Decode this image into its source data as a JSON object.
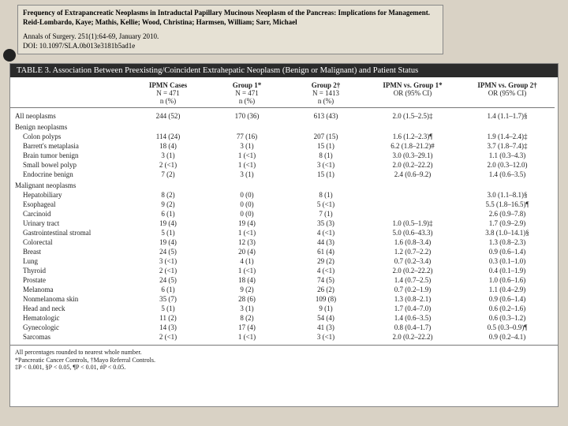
{
  "citation": {
    "title": "Frequency of Extrapancreatic Neoplasms in Intraductal Papillary Mucinous Neoplasm of the Pancreas: Implications for Management.",
    "authors": "Reid-Lombardo, Kaye; Mathis, Kellie; Wood, Christina; Harmsen, William; Sarr, Michael",
    "journal": "Annals of Surgery. 251(1):64-69, January 2010.",
    "doi": "DOI: 10.1097/SLA.0b013e3181b5ad1e"
  },
  "table": {
    "title": "TABLE 3.  Association Between Preexisting/Coincident Extrahepatic Neoplasm (Benign or Malignant) and Patient Status",
    "columns": [
      {
        "top": "",
        "mid": "",
        "bot": ""
      },
      {
        "top": "IPMN Cases",
        "mid": "N = 471",
        "bot": "n (%)"
      },
      {
        "top": "Group 1*",
        "mid": "N = 471",
        "bot": "n (%)"
      },
      {
        "top": "Group 2†",
        "mid": "N = 1413",
        "bot": "n (%)"
      },
      {
        "top": "IPMN vs. Group 1*",
        "mid": "OR (95% CI)",
        "bot": ""
      },
      {
        "top": "IPMN vs. Group 2†",
        "mid": "OR (95% CI)",
        "bot": ""
      }
    ],
    "sections": [
      {
        "label": "All neoplasms",
        "indent": false,
        "cells": [
          "244 (52)",
          "170 (36)",
          "613 (43)",
          "2.0 (1.5–2.5)‡",
          "1.4 (1.1–1.7)§"
        ]
      },
      {
        "label": "Benign neoplasms",
        "indent": false,
        "cells": [
          "",
          "",
          "",
          "",
          ""
        ],
        "head": true
      },
      {
        "label": "Colon polyps",
        "indent": true,
        "cells": [
          "114 (24)",
          "77 (16)",
          "207 (15)",
          "1.6 (1.2–2.3)¶",
          "1.9 (1.4–2.4)‡"
        ]
      },
      {
        "label": "Barrett's metaplasia",
        "indent": true,
        "cells": [
          "18 (4)",
          "3 (1)",
          "15 (1)",
          "6.2 (1.8–21.2)#",
          "3.7 (1.8–7.4)‡"
        ]
      },
      {
        "label": "Brain tumor benign",
        "indent": true,
        "cells": [
          "3 (1)",
          "1 (<1)",
          "8 (1)",
          "3.0 (0.3–29.1)",
          "1.1 (0.3–4.3)"
        ]
      },
      {
        "label": "Small bowel polyp",
        "indent": true,
        "cells": [
          "2 (<1)",
          "1 (<1)",
          "3 (<1)",
          "2.0 (0.2–22.2)",
          "2.0 (0.3–12.0)"
        ]
      },
      {
        "label": "Endocrine benign",
        "indent": true,
        "cells": [
          "7 (2)",
          "3 (1)",
          "15 (1)",
          "2.4 (0.6–9.2)",
          "1.4 (0.6–3.5)"
        ]
      },
      {
        "label": "Malignant neoplasms",
        "indent": false,
        "cells": [
          "",
          "",
          "",
          "",
          ""
        ],
        "head": true
      },
      {
        "label": "Hepatobiliary",
        "indent": true,
        "cells": [
          "8 (2)",
          "0 (0)",
          "8 (1)",
          "",
          "3.0 (1.1–8.1)§"
        ]
      },
      {
        "label": "Esophageal",
        "indent": true,
        "cells": [
          "9 (2)",
          "0 (0)",
          "5 (<1)",
          "",
          "5.5 (1.8–16.5)¶"
        ]
      },
      {
        "label": "Carcinoid",
        "indent": true,
        "cells": [
          "6 (1)",
          "0 (0)",
          "7 (1)",
          "",
          "2.6 (0.9–7.8)"
        ]
      },
      {
        "label": "Urinary tract",
        "indent": true,
        "cells": [
          "19 (4)",
          "19 (4)",
          "35 (3)",
          "1.0 (0.5–1.9)‡",
          "1.7 (0.9–2.9)"
        ]
      },
      {
        "label": "Gastrointestinal stromal",
        "indent": true,
        "cells": [
          "5 (1)",
          "1 (<1)",
          "4 (<1)",
          "5.0 (0.6–43.3)",
          "3.8 (1.0–14.1)§"
        ]
      },
      {
        "label": "Colorectal",
        "indent": true,
        "cells": [
          "19 (4)",
          "12 (3)",
          "44 (3)",
          "1.6 (0.8–3.4)",
          "1.3 (0.8–2.3)"
        ]
      },
      {
        "label": "Breast",
        "indent": true,
        "cells": [
          "24 (5)",
          "20 (4)",
          "61 (4)",
          "1.2 (0.7–2.2)",
          "0.9 (0.6–1.4)"
        ]
      },
      {
        "label": "Lung",
        "indent": true,
        "cells": [
          "3 (<1)",
          "4 (1)",
          "29 (2)",
          "0.7 (0.2–3.4)",
          "0.3 (0.1–1.0)"
        ]
      },
      {
        "label": "Thyroid",
        "indent": true,
        "cells": [
          "2 (<1)",
          "1 (<1)",
          "4 (<1)",
          "2.0 (0.2–22.2)",
          "0.4 (0.1–1.9)"
        ]
      },
      {
        "label": "Prostate",
        "indent": true,
        "cells": [
          "24 (5)",
          "18 (4)",
          "74 (5)",
          "1.4 (0.7–2.5)",
          "1.0 (0.6–1.6)"
        ]
      },
      {
        "label": "Melanoma",
        "indent": true,
        "cells": [
          "6 (1)",
          "9 (2)",
          "26 (2)",
          "0.7 (0.2–1.9)",
          "1.1 (0.4–2.9)"
        ]
      },
      {
        "label": "Nonmelanoma skin",
        "indent": true,
        "cells": [
          "35 (7)",
          "28 (6)",
          "109 (8)",
          "1.3 (0.8–2.1)",
          "0.9 (0.6–1.4)"
        ]
      },
      {
        "label": "Head and neck",
        "indent": true,
        "cells": [
          "5 (1)",
          "3 (1)",
          "9 (1)",
          "1.7 (0.4–7.0)",
          "0.6 (0.2–1.6)"
        ]
      },
      {
        "label": "Hematologic",
        "indent": true,
        "cells": [
          "11 (2)",
          "8 (2)",
          "54 (4)",
          "1.4 (0.6–3.5)",
          "0.6 (0.3–1.2)"
        ]
      },
      {
        "label": "Gynecologic",
        "indent": true,
        "cells": [
          "14 (3)",
          "17 (4)",
          "41 (3)",
          "0.8 (0.4–1.7)",
          "0.5 (0.3–0.9)¶"
        ]
      },
      {
        "label": "Sarcomas",
        "indent": true,
        "cells": [
          "2 (<1)",
          "1 (<1)",
          "3 (<1)",
          "2.0 (0.2–22.2)",
          "0.9 (0.2–4.1)"
        ]
      }
    ],
    "footnotes": [
      "All percentages rounded to nearest whole number.",
      "*Pancreatic Cancer Controls, †Mayo Referral Controls.",
      "‡P < 0.001, §P < 0.05, ¶P < 0.01, #P < 0.05."
    ]
  }
}
